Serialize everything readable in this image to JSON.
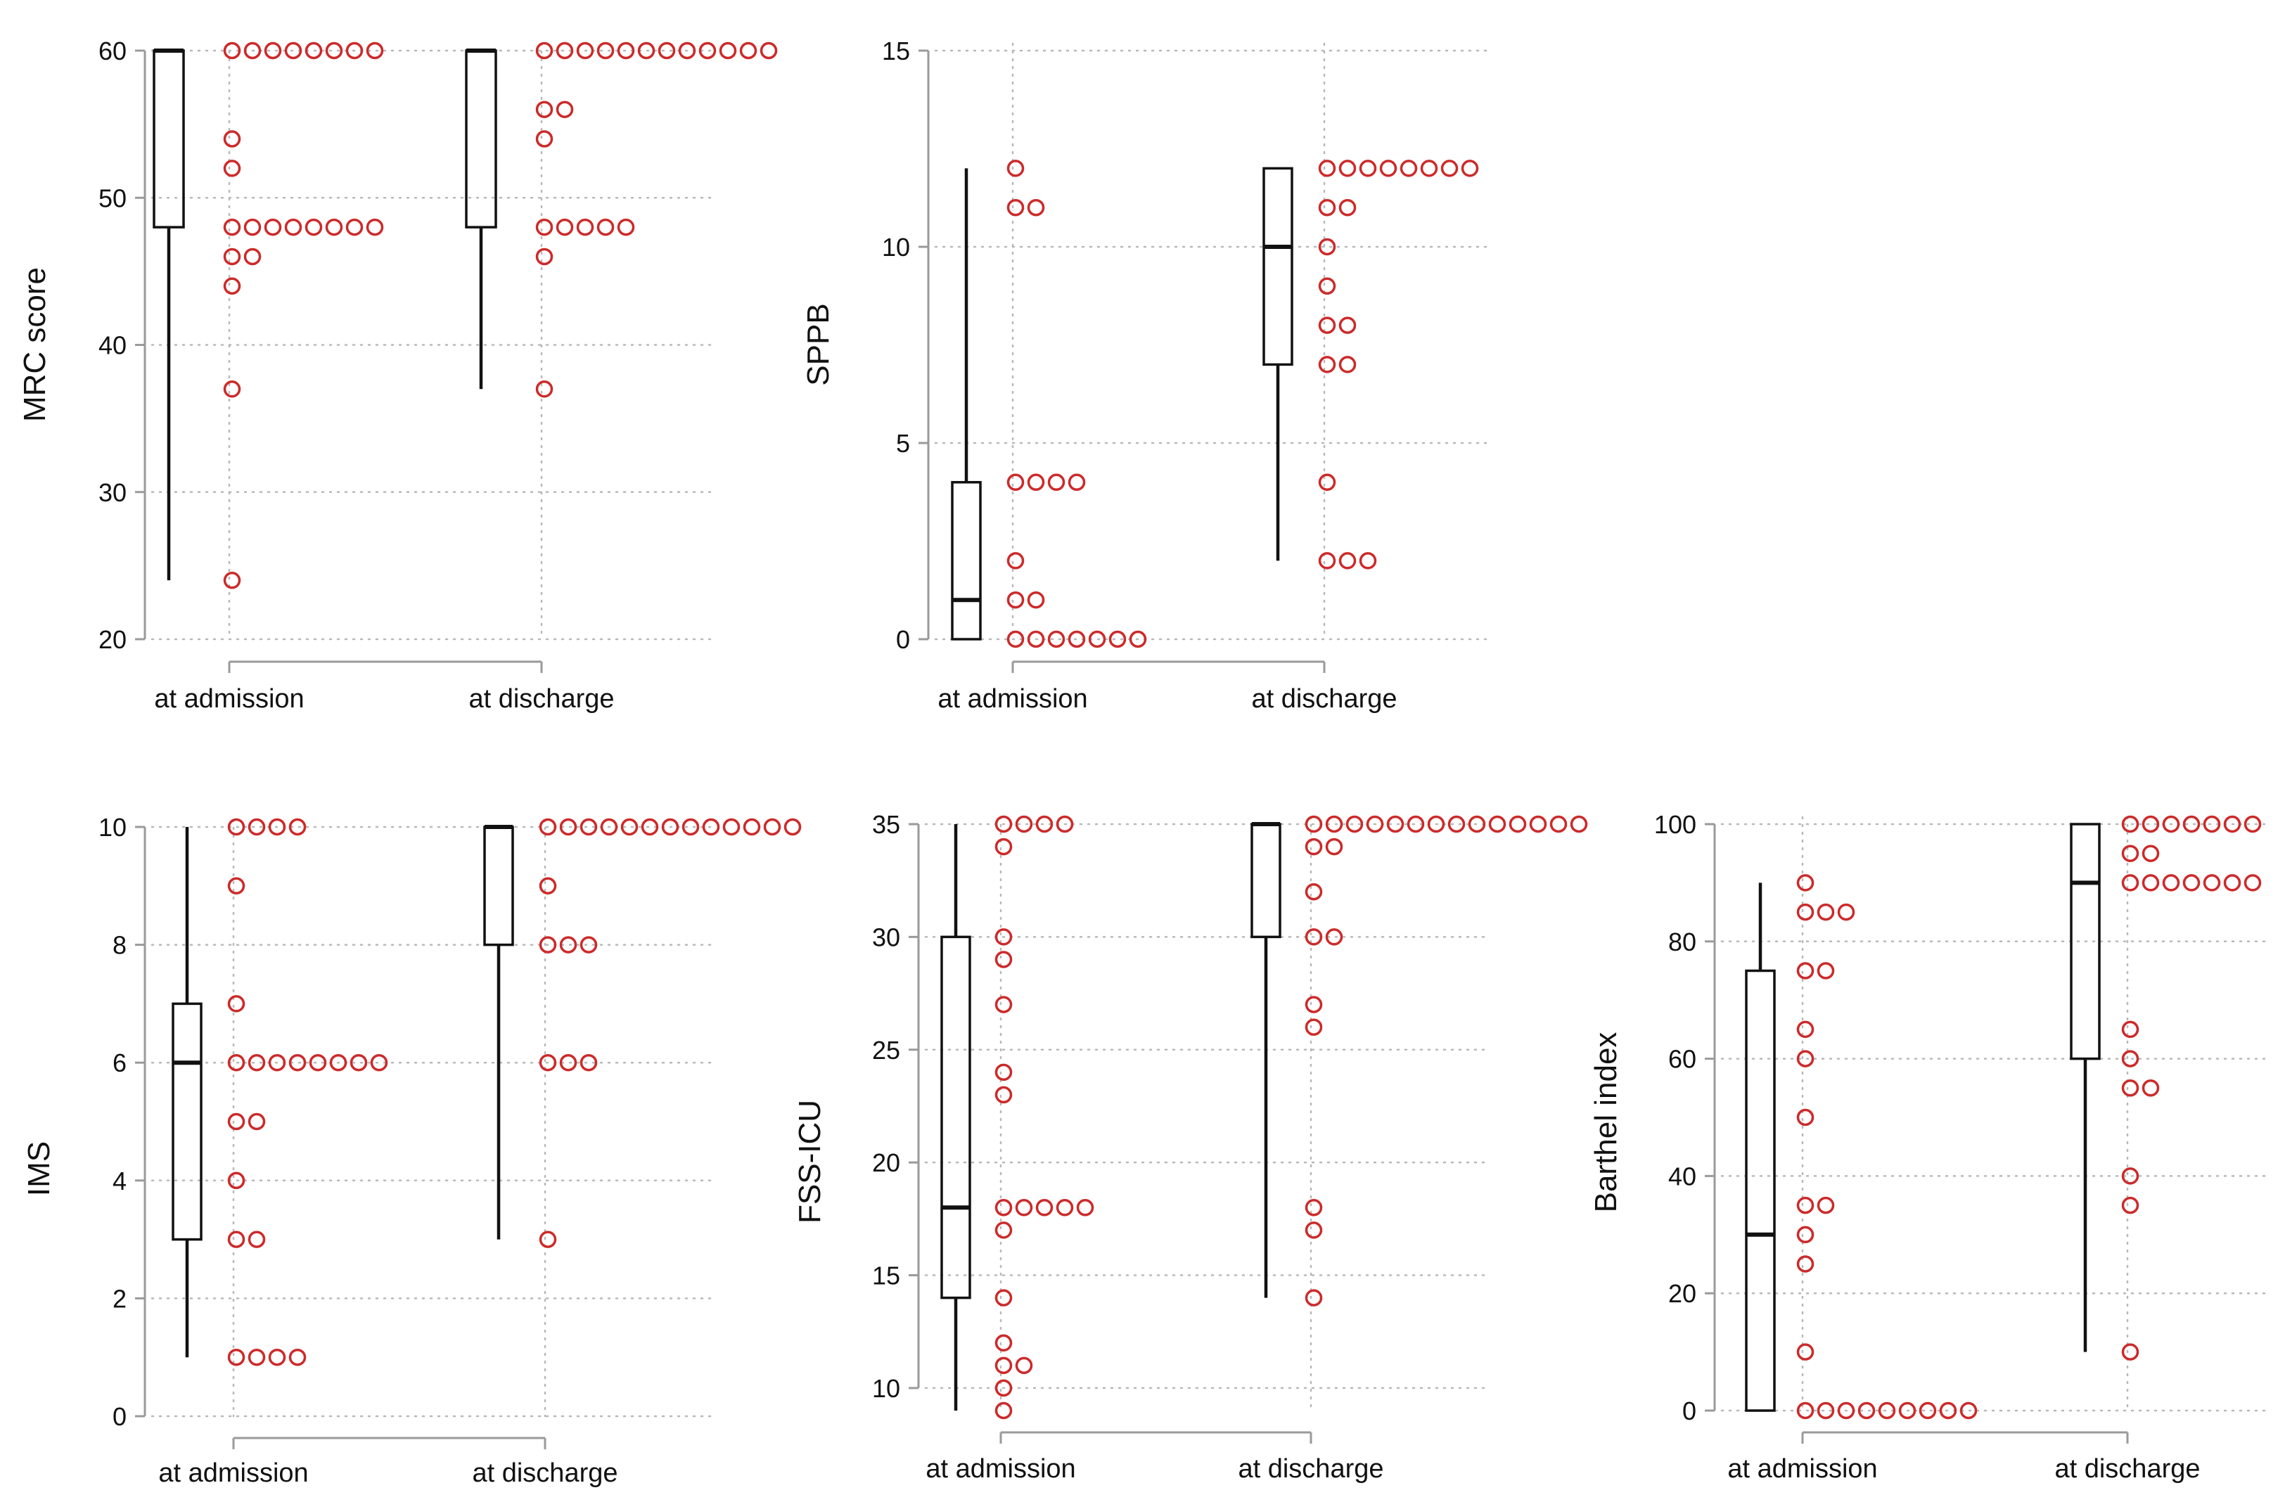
{
  "colors": {
    "points": "#cc2a2a",
    "grid": "#b8b8b8",
    "axis": "#9a9a9a",
    "box": "#111111"
  },
  "chart_data": [
    {
      "type": "box",
      "ylabel": "MRC score",
      "ylim": [
        20,
        60
      ],
      "yticks": [
        20,
        30,
        40,
        50,
        60
      ],
      "categories": [
        "at admission",
        "at discharge"
      ],
      "boxes": [
        {
          "min": 24,
          "q1": 48,
          "median": 60,
          "q3": 60,
          "max": 60
        },
        {
          "min": 37,
          "q1": 48,
          "median": 60,
          "q3": 60,
          "max": 60
        }
      ],
      "dots": [
        [
          [
            60,
            8
          ],
          [
            54,
            1
          ],
          [
            52,
            1
          ],
          [
            48,
            8
          ],
          [
            46,
            2
          ],
          [
            44,
            1
          ],
          [
            37,
            1
          ],
          [
            24,
            1
          ]
        ],
        [
          [
            60,
            12
          ],
          [
            56,
            2
          ],
          [
            54,
            1
          ],
          [
            48,
            5
          ],
          [
            46,
            1
          ],
          [
            37,
            1
          ]
        ]
      ]
    },
    {
      "type": "box",
      "ylabel": "SPPB",
      "ylim": [
        0,
        15
      ],
      "yticks": [
        0,
        5,
        10,
        15
      ],
      "categories": [
        "at admission",
        "at discharge"
      ],
      "boxes": [
        {
          "min": 0,
          "q1": 0,
          "median": 1,
          "q3": 4,
          "max": 12
        },
        {
          "min": 2,
          "q1": 7,
          "median": 10,
          "q3": 12,
          "max": 12
        }
      ],
      "dots": [
        [
          [
            12,
            1
          ],
          [
            11,
            2
          ],
          [
            4,
            4
          ],
          [
            2,
            1
          ],
          [
            1,
            2
          ],
          [
            0,
            7
          ]
        ],
        [
          [
            12,
            8
          ],
          [
            11,
            2
          ],
          [
            10,
            1
          ],
          [
            9,
            1
          ],
          [
            8,
            2
          ],
          [
            7,
            2
          ],
          [
            4,
            1
          ],
          [
            2,
            3
          ]
        ]
      ]
    },
    {
      "type": "box",
      "ylabel": "IMS",
      "ylim": [
        0,
        10
      ],
      "yticks": [
        0,
        2,
        4,
        6,
        8,
        10
      ],
      "categories": [
        "at admission",
        "at discharge"
      ],
      "boxes": [
        {
          "min": 1,
          "q1": 3,
          "median": 6,
          "q3": 7,
          "max": 10
        },
        {
          "min": 3,
          "q1": 8,
          "median": 10,
          "q3": 10,
          "max": 10
        }
      ],
      "dots": [
        [
          [
            10,
            4
          ],
          [
            9,
            1
          ],
          [
            7,
            1
          ],
          [
            6,
            8
          ],
          [
            5,
            2
          ],
          [
            4,
            1
          ],
          [
            3,
            2
          ],
          [
            1,
            4
          ]
        ],
        [
          [
            10,
            13
          ],
          [
            9,
            1
          ],
          [
            8,
            3
          ],
          [
            6,
            3
          ],
          [
            3,
            1
          ]
        ]
      ]
    },
    {
      "type": "box",
      "ylabel": "FSS-ICU",
      "ylim": [
        9,
        35
      ],
      "yticks": [
        10,
        15,
        20,
        25,
        30,
        35
      ],
      "categories": [
        "at admission",
        "at discharge"
      ],
      "boxes": [
        {
          "min": 9,
          "q1": 14,
          "median": 18,
          "q3": 30,
          "max": 35
        },
        {
          "min": 14,
          "q1": 30,
          "median": 35,
          "q3": 35,
          "max": 35
        }
      ],
      "dots": [
        [
          [
            35,
            4
          ],
          [
            34,
            1
          ],
          [
            30,
            1
          ],
          [
            29,
            1
          ],
          [
            27,
            1
          ],
          [
            24,
            1
          ],
          [
            23,
            1
          ],
          [
            18,
            5
          ],
          [
            17,
            1
          ],
          [
            14,
            1
          ],
          [
            12,
            1
          ],
          [
            11,
            2
          ],
          [
            10,
            1
          ],
          [
            9,
            1
          ]
        ],
        [
          [
            35,
            14
          ],
          [
            34,
            2
          ],
          [
            32,
            1
          ],
          [
            30,
            2
          ],
          [
            27,
            1
          ],
          [
            26,
            1
          ],
          [
            18,
            1
          ],
          [
            17,
            1
          ],
          [
            14,
            1
          ]
        ]
      ]
    },
    {
      "type": "box",
      "ylabel": "Barthel index",
      "ylim": [
        0,
        100
      ],
      "yticks": [
        0,
        20,
        40,
        60,
        80,
        100
      ],
      "categories": [
        "at admission",
        "at discharge"
      ],
      "boxes": [
        {
          "min": 0,
          "q1": 0,
          "median": 30,
          "q3": 75,
          "max": 90
        },
        {
          "min": 10,
          "q1": 60,
          "median": 90,
          "q3": 100,
          "max": 100
        }
      ],
      "dots": [
        [
          [
            90,
            1
          ],
          [
            85,
            3
          ],
          [
            75,
            2
          ],
          [
            65,
            1
          ],
          [
            60,
            1
          ],
          [
            50,
            1
          ],
          [
            35,
            2
          ],
          [
            30,
            1
          ],
          [
            25,
            1
          ],
          [
            10,
            1
          ],
          [
            0,
            9
          ]
        ],
        [
          [
            100,
            7
          ],
          [
            95,
            2
          ],
          [
            90,
            7
          ],
          [
            65,
            1
          ],
          [
            60,
            1
          ],
          [
            55,
            2
          ],
          [
            40,
            1
          ],
          [
            35,
            1
          ],
          [
            10,
            1
          ]
        ]
      ]
    }
  ]
}
